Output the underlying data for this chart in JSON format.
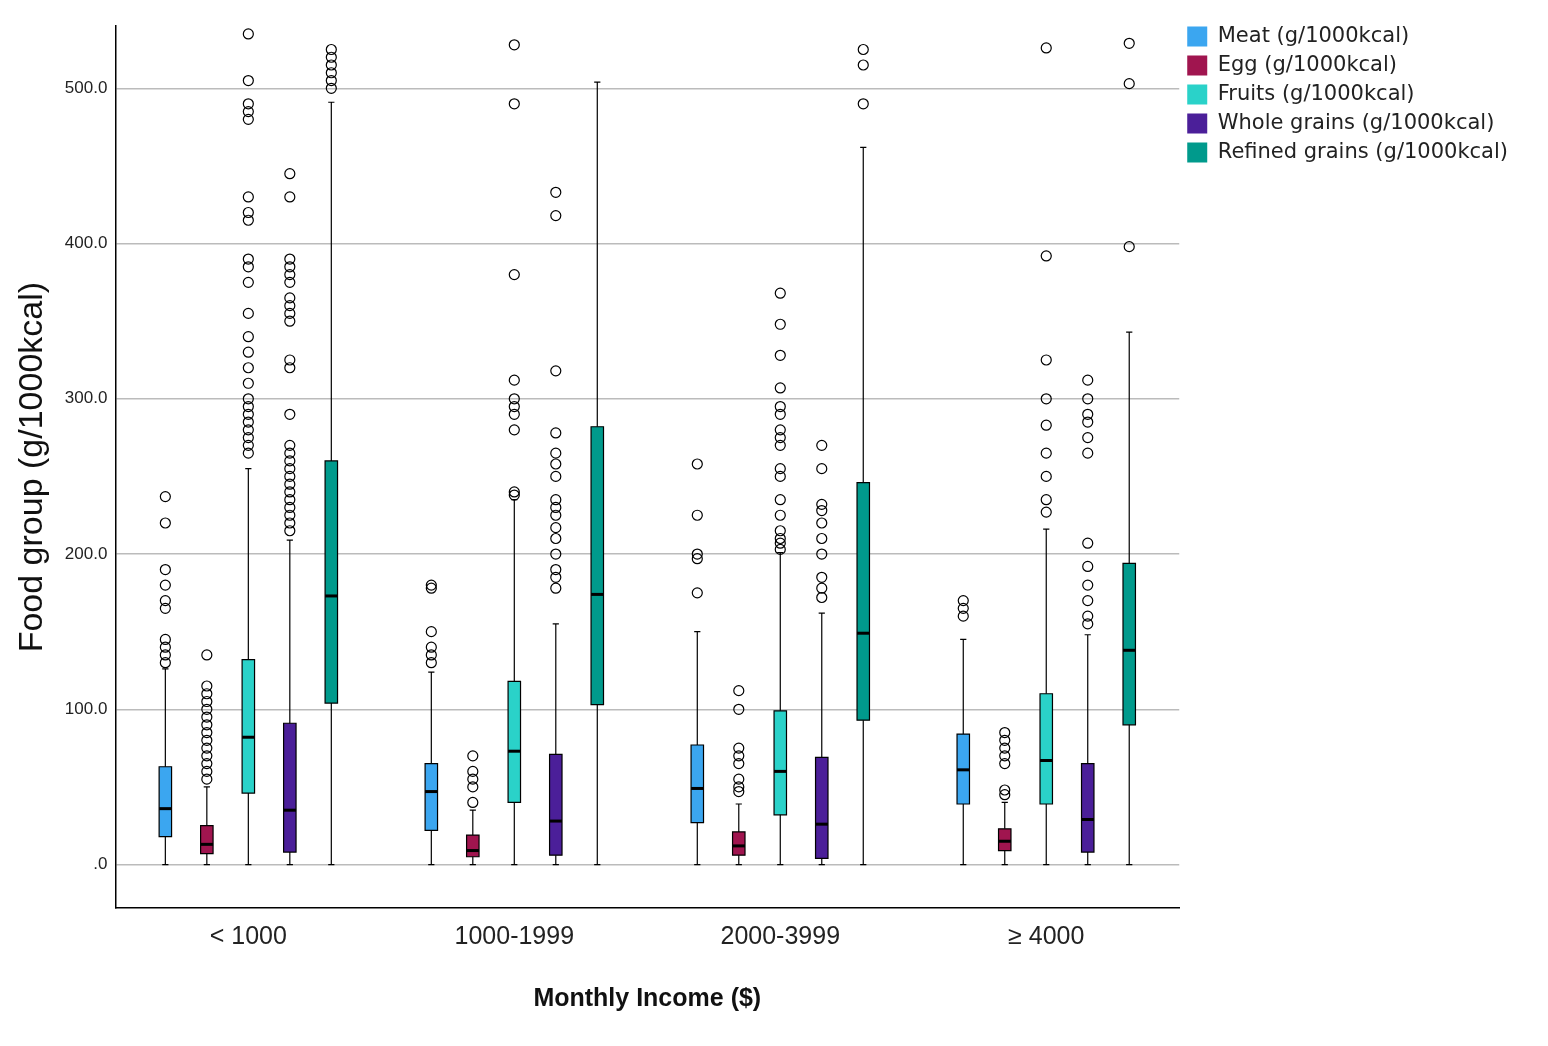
{
  "chart_data": {
    "type": "box",
    "xlabel": "Monthly Income ($)",
    "ylabel": "Food group (g/1000kcal)",
    "categories": [
      "< 1000",
      "1000-1999",
      "2000-3999",
      "≥ 4000"
    ],
    "ylim": [
      -28,
      540
    ],
    "yticks": [
      {
        "value": 0,
        "label": ".0"
      },
      {
        "value": 100,
        "label": "100.0"
      },
      {
        "value": 200,
        "label": "200.0"
      },
      {
        "value": 300,
        "label": "300.0"
      },
      {
        "value": 400,
        "label": "400.0"
      },
      {
        "value": 500,
        "label": "500.0"
      }
    ],
    "grid": "y",
    "legend": "top right",
    "series": [
      {
        "name": "Meat (g/1000kcal)",
        "color": "#3ba6f0",
        "boxes": [
          {
            "low": 0,
            "q1": 18,
            "median": 36,
            "q3": 63,
            "high": 126,
            "outliers": [
              130,
              135,
              140,
              145,
              165,
              170,
              180,
              190,
              220,
              237
            ]
          },
          {
            "low": 0,
            "q1": 22,
            "median": 47,
            "q3": 65,
            "high": 124,
            "outliers": [
              130,
              135,
              140,
              150,
              178,
              180
            ]
          },
          {
            "low": 0,
            "q1": 27,
            "median": 49,
            "q3": 77,
            "high": 150,
            "outliers": [
              175,
              197,
              200,
              225,
              258
            ]
          },
          {
            "low": 0,
            "q1": 39,
            "median": 61,
            "q3": 84,
            "high": 145,
            "outliers": [
              160,
              165,
              170
            ]
          }
        ]
      },
      {
        "name": "Egg (g/1000kcal)",
        "color": "#a0154f",
        "boxes": [
          {
            "low": 0,
            "q1": 7,
            "median": 13,
            "q3": 25,
            "high": 50,
            "outliers": [
              55,
              60,
              65,
              70,
              75,
              80,
              85,
              90,
              95,
              100,
              105,
              110,
              115,
              135
            ]
          },
          {
            "low": 0,
            "q1": 5,
            "median": 9,
            "q3": 19,
            "high": 35,
            "outliers": [
              40,
              50,
              55,
              60,
              70
            ]
          },
          {
            "low": 0,
            "q1": 6,
            "median": 12,
            "q3": 21,
            "high": 39,
            "outliers": [
              47,
              50,
              55,
              65,
              70,
              75,
              100,
              112
            ]
          },
          {
            "low": 0,
            "q1": 9,
            "median": 15,
            "q3": 23,
            "high": 40,
            "outliers": [
              45,
              48,
              65,
              70,
              75,
              80,
              85
            ]
          }
        ]
      },
      {
        "name": "Fruits (g/1000kcal)",
        "color": "#2ad2c9",
        "boxes": [
          {
            "low": 0,
            "q1": 46,
            "median": 82,
            "q3": 132,
            "high": 255,
            "outliers": [
              265,
              270,
              275,
              280,
              285,
              290,
              295,
              300,
              310,
              320,
              330,
              340,
              355,
              375,
              385,
              390,
              415,
              420,
              430,
              480,
              485,
              490,
              505,
              535
            ]
          },
          {
            "low": 0,
            "q1": 40,
            "median": 73,
            "q3": 118,
            "high": 235,
            "outliers": [
              238,
              240,
              280,
              290,
              295,
              300,
              312,
              380,
              490,
              528
            ]
          },
          {
            "low": 0,
            "q1": 32,
            "median": 60,
            "q3": 99,
            "high": 201,
            "outliers": [
              203,
              207,
              210,
              215,
              225,
              235,
              250,
              255,
              270,
              275,
              280,
              290,
              295,
              307,
              328,
              348,
              368
            ]
          },
          {
            "low": 0,
            "q1": 39,
            "median": 67,
            "q3": 110,
            "high": 216,
            "outliers": [
              227,
              235,
              250,
              265,
              283,
              300,
              325,
              392,
              526
            ]
          }
        ]
      },
      {
        "name": "Whole grains (g/1000kcal)",
        "color": "#4b1f99",
        "boxes": [
          {
            "low": 0,
            "q1": 8,
            "median": 35,
            "q3": 91,
            "high": 209,
            "outliers": [
              215,
              220,
              225,
              230,
              235,
              240,
              245,
              250,
              255,
              260,
              265,
              270,
              290,
              320,
              325,
              350,
              355,
              360,
              365,
              375,
              380,
              385,
              390,
              430,
              445
            ]
          },
          {
            "low": 0,
            "q1": 6,
            "median": 28,
            "q3": 71,
            "high": 155,
            "outliers": [
              178,
              185,
              190,
              200,
              210,
              217,
              225,
              230,
              235,
              250,
              258,
              265,
              278,
              318,
              418,
              433
            ]
          },
          {
            "low": 0,
            "q1": 4,
            "median": 26,
            "q3": 69,
            "high": 162,
            "outliers": [
              172,
              178,
              185,
              200,
              210,
              220,
              228,
              232,
              255,
              270
            ]
          },
          {
            "low": 0,
            "q1": 8,
            "median": 29,
            "q3": 65,
            "high": 148,
            "outliers": [
              155,
              160,
              170,
              180,
              192,
              207,
              265,
              275,
              285,
              290,
              300,
              312
            ]
          }
        ]
      },
      {
        "name": "Refined grains (g/1000kcal)",
        "color": "#009a8c",
        "boxes": [
          {
            "low": 0,
            "q1": 104,
            "median": 173,
            "q3": 260,
            "high": 491,
            "outliers": [
              500,
              505,
              510,
              515,
              520,
              525
            ]
          },
          {
            "low": 0,
            "q1": 103,
            "median": 174,
            "q3": 282,
            "high": 504
          },
          {
            "low": 0,
            "q1": 93,
            "median": 149,
            "q3": 246,
            "high": 462,
            "outliers": [
              490,
              515,
              525
            ]
          },
          {
            "low": 0,
            "q1": 90,
            "median": 138,
            "q3": 194,
            "high": 343,
            "outliers": [
              398,
              503,
              529
            ]
          }
        ]
      }
    ]
  }
}
